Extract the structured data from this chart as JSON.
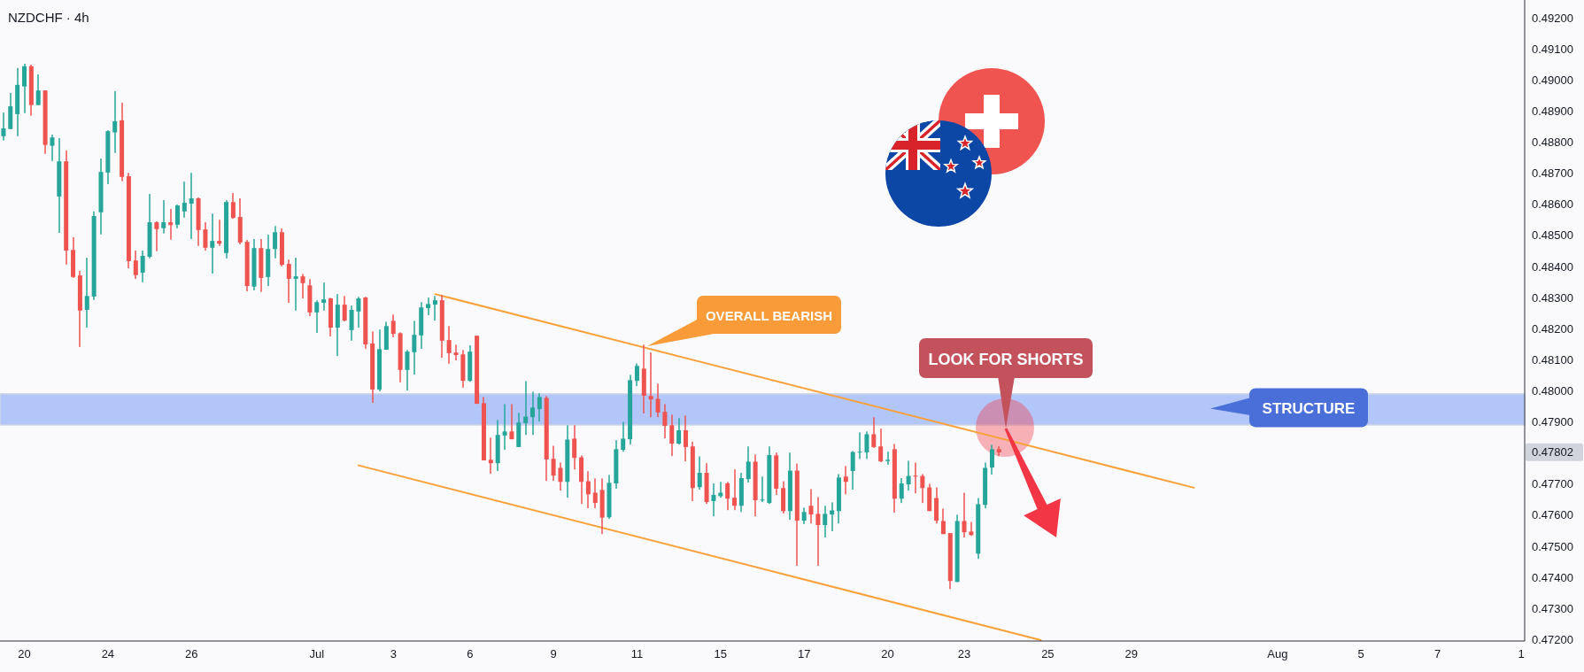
{
  "chart_data": {
    "type": "candlestick",
    "title": "NZDCHF · 4h",
    "categories": [
      null,
      null,
      null,
      "20",
      null,
      null,
      null,
      null,
      null,
      null,
      null,
      null,
      null,
      null,
      null,
      "24",
      null,
      null,
      null,
      null,
      null,
      null,
      null,
      null,
      null,
      null,
      null,
      "26",
      null,
      null,
      null,
      null,
      null,
      null,
      null,
      null,
      null,
      null,
      null,
      null,
      null,
      null,
      null,
      null,
      null,
      "Jul",
      null,
      null,
      null,
      null,
      null,
      null,
      null,
      null,
      null,
      null,
      "3",
      null,
      null,
      null,
      null,
      null,
      null,
      null,
      null,
      null,
      null,
      "6",
      null,
      null,
      null,
      null,
      null,
      null,
      null,
      null,
      null,
      null,
      null,
      "9",
      null,
      null,
      null,
      null,
      null,
      null,
      null,
      null,
      null,
      null,
      null,
      "11",
      null,
      null,
      null,
      null,
      null,
      null,
      null,
      null,
      null,
      null,
      null,
      "15",
      null,
      null,
      null,
      null,
      null,
      null,
      null,
      null,
      null,
      null,
      null,
      "17",
      null,
      null,
      null,
      null,
      null,
      null,
      null,
      null,
      null,
      null,
      null,
      "20",
      null,
      null,
      null,
      null,
      null,
      null,
      null,
      null,
      null,
      null,
      "23",
      null,
      null,
      null,
      null,
      null,
      null,
      null,
      null,
      null,
      null,
      null,
      "25",
      null,
      null,
      null,
      null,
      null,
      null,
      null,
      null,
      null,
      null,
      null,
      "29",
      null,
      null,
      null,
      null,
      null,
      null,
      null,
      null,
      null,
      null,
      null,
      null,
      null,
      null,
      null,
      null,
      null,
      null,
      null,
      null,
      "Aug",
      null,
      null,
      null,
      null,
      null,
      null,
      null,
      null,
      null,
      null,
      null,
      "5",
      null,
      null,
      null,
      null,
      null,
      null,
      null,
      null,
      null,
      null,
      "7",
      null,
      null,
      null,
      null,
      null,
      null,
      null,
      null,
      null,
      null,
      null,
      "1"
    ],
    "ohlc": [
      [
        0.48819,
        0.48895,
        0.48805,
        0.48844
      ],
      [
        0.48842,
        0.48958,
        0.48842,
        0.48915
      ],
      [
        0.4889,
        0.49038,
        0.48819,
        0.48984
      ],
      [
        0.48979,
        0.49052,
        0.48893,
        0.49044
      ],
      [
        0.49044,
        0.49049,
        0.48885,
        0.48919
      ],
      [
        0.48919,
        0.49018,
        0.48919,
        0.48966
      ],
      [
        0.48966,
        0.48966,
        0.48762,
        0.48791
      ],
      [
        0.48788,
        0.48824,
        0.48739,
        0.48815
      ],
      [
        0.48625,
        0.48813,
        0.48508,
        0.48738
      ],
      [
        0.48738,
        0.48773,
        0.48406,
        0.48451
      ],
      [
        0.48453,
        0.48494,
        0.48363,
        0.48366
      ],
      [
        0.48371,
        0.48386,
        0.48141,
        0.48258
      ],
      [
        0.4826,
        0.48428,
        0.48203,
        0.48305
      ],
      [
        0.48303,
        0.48577,
        0.48292,
        0.48562
      ],
      [
        0.48574,
        0.48747,
        0.48503,
        0.48704
      ],
      [
        0.48702,
        0.48838,
        0.48665,
        0.48835
      ],
      [
        0.48831,
        0.48964,
        0.48765,
        0.48867
      ],
      [
        0.4887,
        0.48927,
        0.48674,
        0.48688
      ],
      [
        0.4869,
        0.48701,
        0.48394,
        0.48417
      ],
      [
        0.48419,
        0.48451,
        0.4836,
        0.48372
      ],
      [
        0.4838,
        0.48451,
        0.48349,
        0.48434
      ],
      [
        0.48431,
        0.48633,
        0.48426,
        0.48542
      ],
      [
        0.48542,
        0.48545,
        0.48449,
        0.4852
      ],
      [
        0.48523,
        0.48613,
        0.48506,
        0.48542
      ],
      [
        0.48542,
        0.48585,
        0.48486,
        0.48533
      ],
      [
        0.48534,
        0.48599,
        0.48523,
        0.48596
      ],
      [
        0.48577,
        0.48673,
        0.48557,
        0.48605
      ],
      [
        0.48602,
        0.48701,
        0.48488,
        0.48619
      ],
      [
        0.48619,
        0.48622,
        0.48466,
        0.48517
      ],
      [
        0.48519,
        0.48542,
        0.48451,
        0.4846
      ],
      [
        0.4846,
        0.4857,
        0.48377,
        0.48482
      ],
      [
        0.48482,
        0.4855,
        0.48466,
        0.48473
      ],
      [
        0.48443,
        0.48613,
        0.48426,
        0.48607
      ],
      [
        0.48607,
        0.48636,
        0.48553,
        0.48556
      ],
      [
        0.48559,
        0.48619,
        0.48471,
        0.48477
      ],
      [
        0.48479,
        0.48485,
        0.4832,
        0.48337
      ],
      [
        0.48335,
        0.48488,
        0.48323,
        0.48459
      ],
      [
        0.48459,
        0.48488,
        0.48318,
        0.48363
      ],
      [
        0.48366,
        0.48502,
        0.48337,
        0.48456
      ],
      [
        0.48456,
        0.4853,
        0.48426,
        0.4851
      ],
      [
        0.4851,
        0.48522,
        0.484,
        0.48405
      ],
      [
        0.48408,
        0.48422,
        0.48283,
        0.4836
      ],
      [
        0.4836,
        0.48428,
        0.48258,
        0.48368
      ],
      [
        0.48368,
        0.48376,
        0.48297,
        0.48346
      ],
      [
        0.48339,
        0.48359,
        0.4824,
        0.48252
      ],
      [
        0.48252,
        0.48291,
        0.48186,
        0.48285
      ],
      [
        0.48283,
        0.48348,
        0.48258,
        0.48294
      ],
      [
        0.48297,
        0.48299,
        0.48175,
        0.48203
      ],
      [
        0.48203,
        0.48311,
        0.48112,
        0.48277
      ],
      [
        0.48277,
        0.48305,
        0.48223,
        0.48226
      ],
      [
        0.48195,
        0.48274,
        0.48161,
        0.4826
      ],
      [
        0.48255,
        0.48302,
        0.48203,
        0.48297
      ],
      [
        0.483,
        0.48302,
        0.48135,
        0.48149
      ],
      [
        0.48152,
        0.48191,
        0.47961,
        0.48004
      ],
      [
        0.48004,
        0.48197,
        0.47998,
        0.48134
      ],
      [
        0.48132,
        0.48222,
        0.48132,
        0.48208
      ],
      [
        0.48225,
        0.48245,
        0.48172,
        0.48183
      ],
      [
        0.48185,
        0.48188,
        0.48027,
        0.48067
      ],
      [
        0.48067,
        0.48131,
        0.48001,
        0.48126
      ],
      [
        0.48124,
        0.48225,
        0.48052,
        0.4818
      ],
      [
        0.48178,
        0.48285,
        0.48135,
        0.48268
      ],
      [
        0.48266,
        0.483,
        0.48243,
        0.48279
      ],
      [
        0.48277,
        0.48305,
        0.48226,
        0.48291
      ],
      [
        0.48291,
        0.48308,
        0.48106,
        0.48161
      ],
      [
        0.48163,
        0.48208,
        0.48087,
        0.48121
      ],
      [
        0.48123,
        0.48148,
        0.48098,
        0.48115
      ],
      [
        0.48117,
        0.48131,
        0.4801,
        0.48032
      ],
      [
        0.48032,
        0.48146,
        0.48029,
        0.48126
      ],
      [
        0.48177,
        0.48177,
        0.47958,
        0.47958
      ],
      [
        0.4796,
        0.4798,
        0.47776,
        0.47776
      ],
      [
        0.47778,
        0.47849,
        0.47733,
        0.47767
      ],
      [
        0.47767,
        0.47906,
        0.47742,
        0.47858
      ],
      [
        0.47856,
        0.47957,
        0.4781,
        0.47869
      ],
      [
        0.47869,
        0.47957,
        0.47844,
        0.47844
      ],
      [
        0.47819,
        0.47929,
        0.47819,
        0.47898
      ],
      [
        0.47896,
        0.48031,
        0.47858,
        0.47917
      ],
      [
        0.47915,
        0.47997,
        0.47858,
        0.47946
      ],
      [
        0.47941,
        0.47992,
        0.47901,
        0.4798
      ],
      [
        0.47977,
        0.47983,
        0.4771,
        0.47779
      ],
      [
        0.47781,
        0.47823,
        0.4771,
        0.47727
      ],
      [
        0.47752,
        0.47769,
        0.47679,
        0.47707
      ],
      [
        0.47707,
        0.47889,
        0.47656,
        0.47843
      ],
      [
        0.47846,
        0.47889,
        0.47747,
        0.47784
      ],
      [
        0.47786,
        0.47792,
        0.47636,
        0.47707
      ],
      [
        0.47709,
        0.47741,
        0.47622,
        0.47667
      ],
      [
        0.47672,
        0.47718,
        0.47622,
        0.47639
      ],
      [
        0.47681,
        0.47718,
        0.47539,
        0.47592
      ],
      [
        0.47593,
        0.47729,
        0.47588,
        0.47704
      ],
      [
        0.47702,
        0.47841,
        0.47685,
        0.47812
      ],
      [
        0.4781,
        0.479,
        0.47804,
        0.47846
      ],
      [
        0.47844,
        0.48051,
        0.47827,
        0.48034
      ],
      [
        0.48032,
        0.48088,
        0.48015,
        0.4808
      ],
      [
        0.48071,
        0.48148,
        0.47927,
        0.47984
      ],
      [
        0.47983,
        0.48123,
        0.47915,
        0.47972
      ],
      [
        0.47974,
        0.48023,
        0.47915,
        0.4793
      ],
      [
        0.47932,
        0.47957,
        0.47847,
        0.47887
      ],
      [
        0.47889,
        0.47923,
        0.4779,
        0.4783
      ],
      [
        0.4783,
        0.47912,
        0.47827,
        0.47873
      ],
      [
        0.47873,
        0.4792,
        0.47773,
        0.47819
      ],
      [
        0.47821,
        0.47836,
        0.47645,
        0.47687
      ],
      [
        0.4769,
        0.47789,
        0.47682,
        0.47736
      ],
      [
        0.47736,
        0.47767,
        0.47636,
        0.47642
      ],
      [
        0.47645,
        0.47702,
        0.47596,
        0.47665
      ],
      [
        0.47661,
        0.47707,
        0.47656,
        0.47672
      ],
      [
        0.47702,
        0.47707,
        0.47616,
        0.47653
      ],
      [
        0.47656,
        0.47747,
        0.47616,
        0.4763
      ],
      [
        0.4763,
        0.47736,
        0.4761,
        0.47719
      ],
      [
        0.47716,
        0.47821,
        0.47705,
        0.47772
      ],
      [
        0.47772,
        0.47795,
        0.47596,
        0.47648
      ],
      [
        0.47648,
        0.47724,
        0.47642,
        0.4765
      ],
      [
        0.47639,
        0.47821,
        0.47636,
        0.47793
      ],
      [
        0.47792,
        0.47801,
        0.47665,
        0.47685
      ],
      [
        0.47687,
        0.47709,
        0.47605,
        0.47613
      ],
      [
        0.47613,
        0.47801,
        0.47585,
        0.47743
      ],
      [
        0.47743,
        0.47766,
        0.47437,
        0.47582
      ],
      [
        0.47582,
        0.47624,
        0.47571,
        0.4761
      ],
      [
        0.4763,
        0.47684,
        0.47573,
        0.47602
      ],
      [
        0.47604,
        0.47658,
        0.47437,
        0.47568
      ],
      [
        0.47568,
        0.4763,
        0.47528,
        0.47604
      ],
      [
        0.47602,
        0.47641,
        0.47548,
        0.47615
      ],
      [
        0.47613,
        0.47732,
        0.47573,
        0.47721
      ],
      [
        0.47724,
        0.47758,
        0.47667,
        0.47707
      ],
      [
        0.47742,
        0.47806,
        0.47682,
        0.47803
      ],
      [
        0.47802,
        0.47866,
        0.47781,
        0.47804
      ],
      [
        0.47802,
        0.47869,
        0.47781,
        0.4786
      ],
      [
        0.4786,
        0.47915,
        0.47816,
        0.47819
      ],
      [
        0.47821,
        0.47878,
        0.4777,
        0.47773
      ],
      [
        0.47774,
        0.47804,
        0.47762,
        0.47778
      ],
      [
        0.47812,
        0.47829,
        0.47608,
        0.47653
      ],
      [
        0.47653,
        0.47719,
        0.47639,
        0.47702
      ],
      [
        0.47699,
        0.47775,
        0.47679,
        0.47726
      ],
      [
        0.47727,
        0.47769,
        0.4767,
        0.47724
      ],
      [
        0.47726,
        0.47732,
        0.47639,
        0.47687
      ],
      [
        0.47689,
        0.47701,
        0.47613,
        0.47613
      ],
      [
        0.47655,
        0.47689,
        0.47573,
        0.47582
      ],
      [
        0.47581,
        0.47621,
        0.47539,
        0.47539
      ],
      [
        0.47542,
        0.47542,
        0.47362,
        0.47388
      ],
      [
        0.47385,
        0.47601,
        0.47385,
        0.47581
      ],
      [
        0.47581,
        0.47672,
        0.47528,
        0.47545
      ],
      [
        0.47547,
        0.47578,
        0.47533,
        0.47536
      ],
      [
        0.47476,
        0.47655,
        0.47459,
        0.47635
      ],
      [
        0.47633,
        0.47769,
        0.47622,
        0.47752
      ],
      [
        0.47753,
        0.47826,
        0.4773,
        0.47812
      ],
      [
        0.47812,
        0.47821,
        0.4779,
        0.47802
      ],
      null,
      null,
      null,
      null,
      null,
      null,
      null,
      null,
      null,
      null,
      null,
      null,
      null,
      null,
      null,
      null,
      null,
      null,
      null,
      null,
      null,
      null,
      null,
      null,
      null,
      null,
      null,
      null,
      null,
      null,
      null,
      null,
      null,
      null,
      null,
      null,
      null,
      null,
      null,
      null,
      null,
      null,
      null,
      null,
      null,
      null,
      null,
      null,
      null,
      null,
      null,
      null,
      null,
      null,
      null,
      null,
      null,
      null,
      null,
      null,
      null,
      null,
      null,
      null,
      null,
      null,
      null,
      null,
      null,
      null,
      null,
      null,
      null,
      null,
      null
    ],
    "series": [
      {
        "type": "line",
        "color": "#f9a13a",
        "values": [
          null,
          null,
          null,
          null,
          null,
          null,
          null,
          null,
          null,
          null,
          null,
          null,
          null,
          null,
          null,
          null,
          null,
          null,
          null,
          null,
          null,
          null,
          null,
          null,
          null,
          null,
          null,
          null,
          null,
          null,
          null,
          null,
          null,
          null,
          null,
          null,
          null,
          null,
          null,
          null,
          null,
          null,
          null,
          null,
          null,
          null,
          null,
          null,
          null,
          null,
          null,
          null,
          null,
          null,
          null,
          null,
          null,
          null,
          null,
          null,
          null,
          null,
          0.48311,
          null,
          null,
          null,
          null,
          null,
          null,
          null,
          null,
          null,
          null,
          null,
          null,
          null,
          null,
          null,
          null,
          null,
          null,
          null,
          null,
          null,
          null,
          null,
          null,
          null,
          null,
          null,
          null,
          null,
          null,
          null,
          null,
          null,
          null,
          null,
          null,
          null,
          null,
          null,
          null,
          null,
          null,
          null,
          null,
          null,
          null,
          null,
          null,
          null,
          null,
          null,
          null,
          null,
          null,
          null,
          null,
          null,
          null,
          null,
          null,
          null,
          null,
          null,
          null,
          null,
          null,
          null,
          null,
          null,
          null,
          null,
          null,
          null,
          null,
          null,
          null,
          null,
          null,
          null,
          null,
          null,
          null,
          null,
          null,
          null,
          null,
          null,
          null,
          null,
          null,
          null,
          null,
          null,
          null,
          null,
          null,
          null,
          null,
          null,
          null,
          null,
          null,
          null,
          null,
          null,
          null,
          null,
          null,
          0.47688,
          null,
          null,
          null,
          null,
          null,
          null,
          null,
          null,
          null,
          null,
          null,
          null,
          null,
          null,
          null,
          null,
          null,
          null,
          null,
          null,
          null,
          null,
          null,
          null,
          null,
          null,
          null,
          null,
          null,
          null,
          null,
          null,
          null,
          null,
          null,
          null,
          null,
          null,
          null,
          null,
          null,
          null,
          null,
          null,
          null,
          null,
          null
        ]
      },
      {
        "type": "line",
        "color": "#f9a13a",
        "values": [
          null,
          null,
          null,
          null,
          null,
          null,
          null,
          null,
          null,
          null,
          null,
          null,
          null,
          null,
          null,
          null,
          null,
          null,
          null,
          null,
          null,
          null,
          null,
          null,
          null,
          null,
          null,
          null,
          null,
          null,
          null,
          null,
          null,
          null,
          null,
          null,
          null,
          null,
          null,
          null,
          null,
          null,
          null,
          null,
          null,
          null,
          null,
          null,
          null,
          null,
          null,
          0.4776,
          null,
          null,
          null,
          null,
          null,
          null,
          null,
          null,
          null,
          null,
          null,
          null,
          null,
          null,
          null,
          null,
          null,
          null,
          null,
          null,
          null,
          null,
          null,
          null,
          null,
          null,
          null,
          null,
          null,
          null,
          null,
          null,
          null,
          null,
          null,
          null,
          null,
          null,
          null,
          null,
          null,
          null,
          null,
          null,
          null,
          null,
          null,
          null,
          null,
          null,
          null,
          null,
          null,
          null,
          null,
          null,
          null,
          null,
          null,
          null,
          null,
          null,
          null,
          null,
          null,
          null,
          null,
          null,
          null,
          null,
          null,
          null,
          null,
          null,
          null,
          null,
          null,
          null,
          null,
          null,
          null,
          null,
          null,
          null,
          null,
          null,
          null,
          null,
          null,
          null,
          null,
          null,
          null,
          null,
          null,
          null,
          null,
          0.47198,
          null,
          null,
          null,
          null,
          null,
          null,
          null,
          null,
          null,
          null,
          null,
          null,
          null,
          null,
          null,
          null,
          null,
          null,
          null,
          null,
          null,
          null,
          null,
          null,
          null,
          null,
          null,
          null,
          null,
          null,
          null,
          null,
          null,
          null,
          null,
          null,
          null,
          null,
          null,
          null,
          null,
          null,
          null,
          null,
          null,
          null,
          null,
          null,
          null,
          null,
          null,
          null,
          null,
          null,
          null,
          null,
          null,
          null,
          null,
          null,
          null,
          null,
          null,
          null,
          null,
          null,
          null,
          null,
          null
        ]
      }
    ],
    "ylim": [
      0.47195,
      0.49257
    ],
    "yticks": [
      {
        "value": 0.472,
        "label": "0.47200"
      },
      {
        "value": 0.473,
        "label": "0.47300"
      },
      {
        "value": 0.474,
        "label": "0.47400"
      },
      {
        "value": 0.475,
        "label": "0.47500"
      },
      {
        "value": 0.476,
        "label": "0.47600"
      },
      {
        "value": 0.477,
        "label": "0.47700"
      },
      {
        "value": 0.479,
        "label": "0.47900"
      },
      {
        "value": 0.48,
        "label": "0.48000"
      },
      {
        "value": 0.481,
        "label": "0.48100"
      },
      {
        "value": 0.482,
        "label": "0.48200"
      },
      {
        "value": 0.483,
        "label": "0.48300"
      },
      {
        "value": 0.484,
        "label": "0.48400"
      },
      {
        "value": 0.485,
        "label": "0.48500"
      },
      {
        "value": 0.486,
        "label": "0.48600"
      },
      {
        "value": 0.487,
        "label": "0.48700"
      },
      {
        "value": 0.488,
        "label": "0.48800"
      },
      {
        "value": 0.489,
        "label": "0.48900"
      },
      {
        "value": 0.49,
        "label": "0.49000"
      },
      {
        "value": 0.491,
        "label": "0.49100"
      },
      {
        "value": 0.492,
        "label": "0.49200"
      }
    ],
    "bands": [
      {
        "axis": "y",
        "from": 0.4789,
        "to": 0.4799,
        "label": "STRUCTURE",
        "color": "#a6bcf8"
      }
    ],
    "annotations": [
      "OVERALL BEARISH",
      "LOOK FOR SHORTS",
      "0.47802"
    ]
  }
}
